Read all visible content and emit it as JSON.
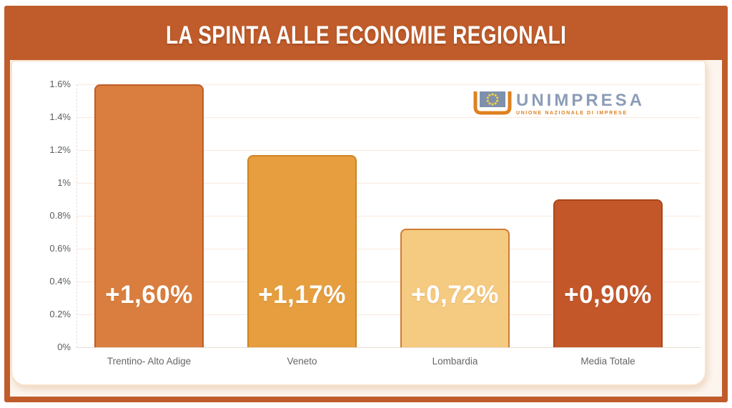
{
  "header": {
    "title": "LA SPINTA ALLE ECONOMIE REGIONALI",
    "bg_color": "#C05C2B"
  },
  "logo": {
    "name": "UNIMPRESA",
    "tagline": "UNIONE NAZIONALE DI IMPRESE",
    "mark_orange": "#E0811F",
    "mark_blue": "#7E90AC",
    "star_yellow": "#F5D03B",
    "name_color": "#8C9CB8"
  },
  "chart_data": {
    "type": "bar",
    "title": "LA SPINTA ALLE ECONOMIE REGIONALI",
    "categories": [
      "Trentino- Alto Adige",
      "Veneto",
      "Lombardia",
      "Media Totale"
    ],
    "values": [
      1.6,
      1.17,
      0.72,
      0.9
    ],
    "value_labels": [
      "+1,60%",
      "+1,17%",
      "+0,72%",
      "+0,90%"
    ],
    "bar_colors": [
      "#D97E3E",
      "#E69E3E",
      "#F5CA81",
      "#C3572A"
    ],
    "bar_border_colors": [
      "#C05C24",
      "#D0841F",
      "#CE7D33",
      "#AC4618"
    ],
    "xlabel": "",
    "ylabel": "",
    "ylim": [
      0,
      1.6
    ],
    "y_ticks": [
      {
        "value": 0,
        "label": "0%"
      },
      {
        "value": 0.2,
        "label": "0.2%"
      },
      {
        "value": 0.4,
        "label": "0.4%"
      },
      {
        "value": 0.6,
        "label": "0.6%"
      },
      {
        "value": 0.8,
        "label": "0.8%"
      },
      {
        "value": 1.0,
        "label": "1%"
      },
      {
        "value": 1.2,
        "label": "1.2%"
      },
      {
        "value": 1.4,
        "label": "1.4%"
      },
      {
        "value": 1.6,
        "label": "1.6%"
      }
    ],
    "grid": true,
    "legend": false
  }
}
